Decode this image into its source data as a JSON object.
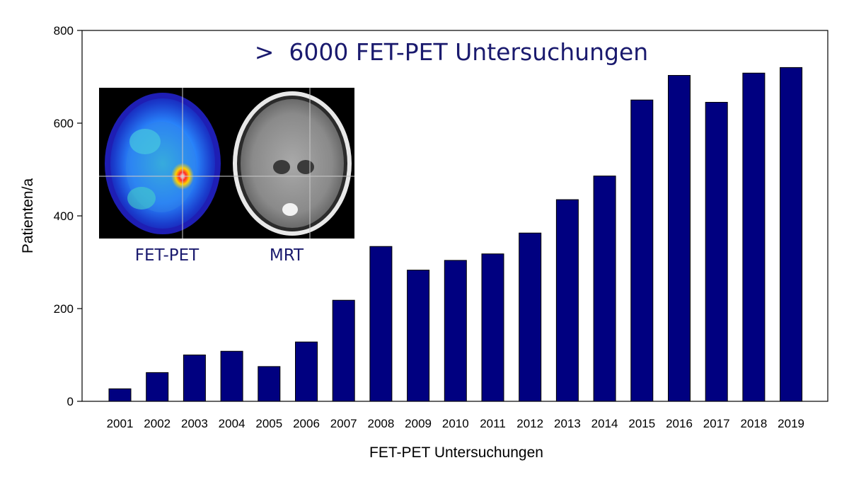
{
  "headline": ">  6000 FET-PET Untersuchungen",
  "inset": {
    "left_caption": "FET-PET",
    "right_caption": "MRT"
  },
  "colors": {
    "bar": "#000080",
    "text_accent": "#1a1a6e"
  },
  "chart_data": {
    "type": "bar",
    "categories": [
      "2001",
      "2002",
      "2003",
      "2004",
      "2005",
      "2006",
      "2007",
      "2008",
      "2009",
      "2010",
      "2011",
      "2012",
      "2013",
      "2014",
      "2015",
      "2016",
      "2017",
      "2018",
      "2019"
    ],
    "values": [
      27,
      62,
      100,
      108,
      75,
      128,
      218,
      334,
      283,
      304,
      318,
      363,
      435,
      486,
      650,
      703,
      645,
      708,
      720
    ],
    "xlabel": "FET-PET Untersuchungen",
    "ylabel": "Patienten/a",
    "ylim": [
      0,
      800
    ],
    "yticks": [
      0,
      200,
      400,
      600,
      800
    ],
    "grid": false
  }
}
